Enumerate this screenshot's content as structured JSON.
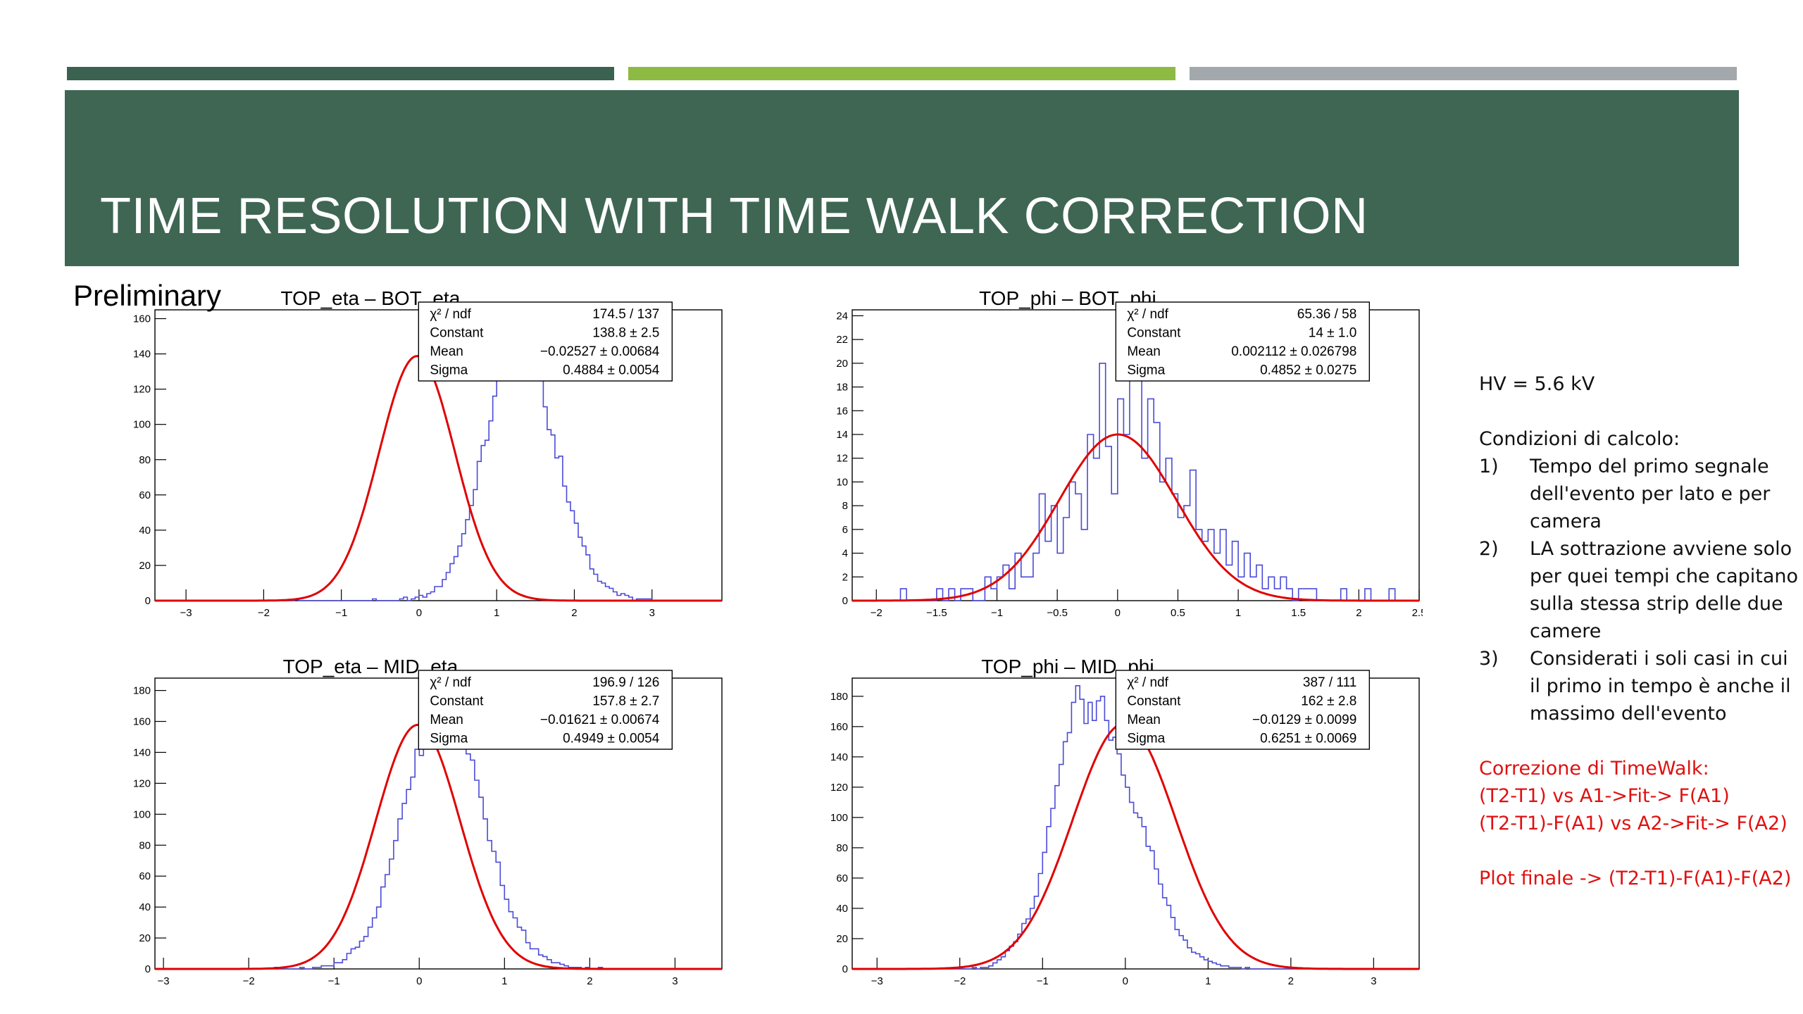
{
  "slide": {
    "title": "TIME RESOLUTION WITH TIME WALK CORRECTION",
    "preliminary": "Preliminary",
    "colors": {
      "top_bar_1": "#3b6150",
      "top_bar_2": "#8dba43",
      "top_bar_3": "#a2a8ac",
      "banner": "#3e6653",
      "histogram": "#4a4ad8",
      "fit": "#e00000",
      "note_red": "#e01010"
    }
  },
  "side_notes": {
    "hv": "HV = 5.6 kV",
    "conditions_title": "Condizioni di calcolo:",
    "conditions": [
      {
        "num": "1)",
        "text": "Tempo del primo segnale dell'evento per lato e per camera"
      },
      {
        "num": "2)",
        "text": "LA sottrazione avviene solo per quei tempi che capitano sulla stessa strip delle due camere"
      },
      {
        "num": "3)",
        "text": "Considerati i soli casi in cui il primo in tempo è anche il massimo dell'evento"
      }
    ],
    "correction_title": "Correzione di TimeWalk:",
    "correction_lines": [
      "(T2-T1) vs A1->Fit-> F(A1)",
      "(T2-T1)-F(A1) vs A2->Fit-> F(A2)"
    ],
    "final_plot": "Plot finale -> (T2-T1)-F(A1)-F(A2)"
  },
  "chart_data": [
    {
      "type": "histogram",
      "title": "TOP_eta – BOT_eta",
      "xlim": [
        -3.4,
        3.9
      ],
      "ylim": [
        0,
        165
      ],
      "xticks": [
        -3,
        -2,
        -1,
        0,
        1,
        2,
        3
      ],
      "xtick_labels": [
        "−3",
        "−2",
        "−1",
        "0",
        "1",
        "2",
        "3"
      ],
      "yticks": [
        0,
        20,
        40,
        60,
        80,
        100,
        120,
        140,
        160
      ],
      "stats": [
        {
          "label": "χ² / ndf",
          "value": "174.5 / 137"
        },
        {
          "label": "Constant",
          "value": "138.8 ± 2.5"
        },
        {
          "label": "Mean",
          "value": "−0.02527 ± 0.00684"
        },
        {
          "label": "Sigma",
          "value": "0.4884 ± 0.0054"
        }
      ],
      "fit": {
        "constant": 138.8,
        "mean": -0.02527,
        "sigma": 0.4884
      },
      "binned": {
        "start": -3.4,
        "width": 0.05,
        "values": [
          0,
          0,
          0,
          0,
          0,
          0,
          0,
          0,
          0,
          0,
          0,
          0,
          0,
          0,
          0,
          0,
          0,
          0,
          0,
          0,
          0,
          0,
          0,
          0,
          0,
          0,
          0,
          0,
          0,
          0,
          0,
          0,
          0,
          0,
          0,
          0,
          1,
          0,
          0,
          0,
          0,
          0,
          0,
          0,
          0,
          0,
          0,
          0,
          0,
          0,
          0,
          0,
          0,
          0,
          0,
          0,
          1,
          0,
          0,
          0,
          0,
          0,
          0,
          1,
          2,
          0,
          1,
          2,
          3,
          2,
          4,
          5,
          8,
          8,
          12,
          16,
          21,
          25,
          31,
          38,
          46,
          54,
          63,
          79,
          88,
          91,
          102,
          116,
          130,
          133,
          149,
          141,
          156,
          153,
          160,
          146,
          139,
          143,
          143,
          126,
          110,
          97,
          94,
          81,
          82,
          65,
          56,
          51,
          44,
          36,
          31,
          26,
          18,
          15,
          11,
          10,
          8,
          7,
          5,
          3,
          4,
          3,
          2,
          0,
          1,
          1,
          1,
          1,
          0,
          0,
          0,
          0,
          0,
          0,
          0,
          0,
          0,
          0,
          0,
          0,
          0,
          0,
          0,
          0,
          0,
          0
        ]
      }
    },
    {
      "type": "histogram",
      "title": "TOP_phi – BOT_phi",
      "xlim": [
        -2.2,
        2.5
      ],
      "ylim": [
        0,
        24.5
      ],
      "xticks": [
        -2,
        -1.5,
        -1,
        -0.5,
        0,
        0.5,
        1,
        1.5,
        2,
        2.5
      ],
      "xtick_labels": [
        "−2",
        "−1.5",
        "−1",
        "−0.5",
        "0",
        "0.5",
        "1",
        "1.5",
        "2",
        "2.5"
      ],
      "yticks": [
        0,
        2,
        4,
        6,
        8,
        10,
        12,
        14,
        16,
        18,
        20,
        22,
        24
      ],
      "stats": [
        {
          "label": "χ² / ndf",
          "value": "65.36 / 58"
        },
        {
          "label": "Constant",
          "value": "14 ± 1.0"
        },
        {
          "label": "Mean",
          "value": "0.002112 ± 0.026798"
        },
        {
          "label": "Sigma",
          "value": "0.4852 ± 0.0275"
        }
      ],
      "fit": {
        "constant": 14,
        "mean": 0.002112,
        "sigma": 0.4852
      },
      "binned": {
        "start": -2.2,
        "width": 0.05,
        "values": [
          0,
          0,
          0,
          0,
          0,
          0,
          0,
          0,
          1,
          0,
          0,
          0,
          0,
          0,
          1,
          0,
          1,
          0,
          1,
          1,
          0,
          0,
          2,
          1,
          2,
          3,
          1,
          4,
          2,
          2,
          4,
          9,
          5,
          8,
          4,
          7,
          10,
          9,
          6,
          14,
          12,
          20,
          13,
          9,
          17,
          14,
          23,
          21,
          12,
          17,
          15,
          10,
          12,
          9,
          7,
          8,
          11,
          6,
          5,
          6,
          4,
          6,
          3,
          5,
          2,
          4,
          2,
          3,
          1,
          2,
          1,
          2,
          1,
          0,
          1,
          1,
          1,
          0,
          0,
          0,
          0,
          1,
          0,
          0,
          0,
          1,
          0,
          0,
          0,
          1,
          0,
          0,
          0,
          0
        ]
      }
    },
    {
      "type": "histogram",
      "title": "TOP_eta – MID_eta",
      "xlim": [
        -3.1,
        3.55
      ],
      "ylim": [
        0,
        188
      ],
      "xticks": [
        -3,
        -2,
        -1,
        0,
        1,
        2,
        3
      ],
      "xtick_labels": [
        "−3",
        "−2",
        "−1",
        "0",
        "1",
        "2",
        "3"
      ],
      "yticks": [
        0,
        20,
        40,
        60,
        80,
        100,
        120,
        140,
        160,
        180
      ],
      "stats": [
        {
          "label": "χ² / ndf",
          "value": "196.9 / 126"
        },
        {
          "label": "Constant",
          "value": "157.8 ± 2.7"
        },
        {
          "label": "Mean",
          "value": "−0.01621 ± 0.00674"
        },
        {
          "label": "Sigma",
          "value": "0.4949 ± 0.0054"
        }
      ],
      "fit": {
        "constant": 157.8,
        "mean": -0.01621,
        "sigma": 0.4949
      },
      "binned": {
        "start": -3.1,
        "width": 0.05,
        "values": [
          0,
          0,
          0,
          0,
          0,
          0,
          0,
          0,
          0,
          0,
          0,
          0,
          0,
          0,
          0,
          0,
          0,
          0,
          0,
          0,
          0,
          0,
          0,
          0,
          0,
          0,
          0,
          0,
          1,
          0,
          0,
          0,
          0,
          0,
          1,
          0,
          0,
          1,
          1,
          2,
          2,
          2,
          4,
          4,
          6,
          10,
          13,
          14,
          18,
          21,
          27,
          33,
          40,
          53,
          61,
          71,
          83,
          97,
          107,
          116,
          124,
          142,
          138,
          160,
          148,
          173,
          177,
          165,
          153,
          170,
          158,
          158,
          154,
          139,
          135,
          122,
          111,
          97,
          83,
          76,
          69,
          54,
          45,
          37,
          33,
          27,
          25,
          17,
          13,
          13,
          9,
          8,
          6,
          4,
          4,
          3,
          2,
          1,
          1,
          1,
          0,
          1,
          0,
          0,
          1,
          0,
          0,
          0,
          0,
          0,
          0,
          0,
          0,
          0,
          0,
          0,
          0,
          0,
          0,
          0,
          0,
          0,
          0,
          0,
          0,
          0,
          0,
          0,
          0,
          0,
          0,
          0,
          0
        ]
      }
    },
    {
      "type": "histogram",
      "title": "TOP_phi – MID_phi",
      "xlim": [
        -3.3,
        3.55
      ],
      "ylim": [
        0,
        192
      ],
      "xticks": [
        -3,
        -2,
        -1,
        0,
        1,
        2,
        3
      ],
      "xtick_labels": [
        "−3",
        "−2",
        "−1",
        "0",
        "1",
        "2",
        "3"
      ],
      "yticks": [
        0,
        20,
        40,
        60,
        80,
        100,
        120,
        140,
        160,
        180
      ],
      "stats": [
        {
          "label": "χ² / ndf",
          "value": "387 / 111"
        },
        {
          "label": "Constant",
          "value": "162 ± 2.8"
        },
        {
          "label": "Mean",
          "value": "−0.0129 ± 0.0099"
        },
        {
          "label": "Sigma",
          "value": "0.6251 ± 0.0069"
        }
      ],
      "fit": {
        "constant": 162,
        "mean": -0.0129,
        "sigma": 0.6251
      },
      "binned": {
        "start": -3.3,
        "width": 0.05,
        "values": [
          0,
          0,
          0,
          0,
          0,
          0,
          0,
          0,
          0,
          0,
          0,
          0,
          0,
          0,
          0,
          0,
          0,
          0,
          0,
          0,
          0,
          0,
          0,
          0,
          0,
          0,
          0,
          0,
          0,
          1,
          0,
          1,
          1,
          2,
          4,
          6,
          8,
          12,
          15,
          18,
          23,
          30,
          33,
          40,
          48,
          63,
          77,
          94,
          106,
          121,
          135,
          150,
          156,
          176,
          187,
          178,
          162,
          176,
          164,
          177,
          180,
          164,
          151,
          153,
          142,
          128,
          120,
          110,
          103,
          100,
          94,
          81,
          78,
          66,
          56,
          47,
          42,
          34,
          26,
          22,
          19,
          14,
          11,
          10,
          8,
          6,
          5,
          4,
          3,
          2,
          2,
          1,
          1,
          1,
          0,
          1,
          0,
          0,
          0,
          0,
          0,
          0,
          0,
          0,
          0,
          0,
          0,
          0,
          0,
          0,
          0,
          0,
          0,
          0,
          0,
          0,
          0,
          0,
          0,
          0,
          0,
          0,
          0,
          0,
          0,
          0,
          0,
          0,
          0,
          0,
          0,
          0,
          0,
          0,
          0,
          0,
          0
        ]
      }
    }
  ]
}
